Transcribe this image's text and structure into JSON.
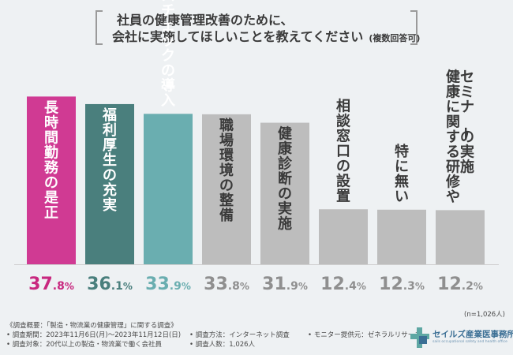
{
  "header": {
    "title_line1": "社員の健康管理改善のために、",
    "title_line2": "会社に実施してほしいことを教えてください",
    "title_suffix": "(複数回答可)"
  },
  "colors": {
    "background": "#eef1f3",
    "bar_top": "#d03a93",
    "bar_second": "#4a7f7d",
    "bar_third": "#6aaeb0",
    "bar_rest": "#bdbdbd",
    "value_top": "#c8287f",
    "value_second": "#4a7f7d",
    "value_third": "#6aaeb0",
    "value_rest": "#8f8f8f"
  },
  "chart_data": {
    "type": "bar",
    "categories": [
      "長時間勤務の是正",
      "福利厚生の充実",
      "ストレスチェックの導入",
      "職場環境の整備",
      "健康診断の実施",
      "相談窓口の設置",
      "特に無い",
      "健康に関する研修やセミナーの実施"
    ],
    "values": [
      37.8,
      36.1,
      33.9,
      33.8,
      31.9,
      12.4,
      12.3,
      12.2
    ],
    "value_labels": [
      {
        "int": "37",
        "dec": ".8",
        "pct": "%"
      },
      {
        "int": "36",
        "dec": ".1",
        "pct": "%"
      },
      {
        "int": "33",
        "dec": ".9",
        "pct": "%"
      },
      {
        "int": "33",
        "dec": ".8",
        "pct": "%"
      },
      {
        "int": "31",
        "dec": ".9",
        "pct": "%"
      },
      {
        "int": "12",
        "dec": ".4",
        "pct": "%"
      },
      {
        "int": "12",
        "dec": ".3",
        "pct": "%"
      },
      {
        "int": "12",
        "dec": ".2",
        "pct": "%"
      }
    ],
    "label_columns": [
      [
        "長時間勤務の是正"
      ],
      [
        "福利厚生の充実"
      ],
      [
        "ストレスチェックの導入"
      ],
      [
        "職場環境の整備"
      ],
      [
        "健康診断の実施"
      ],
      [
        "相談窓口の設置"
      ],
      [
        "特に無い"
      ],
      [
        "セミナーの実施",
        "健康に関する研修や"
      ]
    ],
    "ylim": [
      0,
      40
    ],
    "grid": false,
    "legend": "none",
    "n_note": "(n=1,026人)"
  },
  "footer": {
    "line1": "《調査概要：「製造・物流業の健康管理」に関する調査》",
    "period": "• 調査期間：2023年11月6日(月)〜2023年11月12日(日)",
    "method": "• 調査方法：インターネット調査",
    "monitor": "• モニター提供元：ゼネラルリサーチ",
    "target": "• 調査対象：20代以上の製造・物流業で働く会社員",
    "count": "• 調査人数：1,026人"
  },
  "logo": {
    "name": "セイルズ産業医事務所",
    "tagline": "sails occupational safety and health office",
    "icon": "cross-logo-icon"
  }
}
